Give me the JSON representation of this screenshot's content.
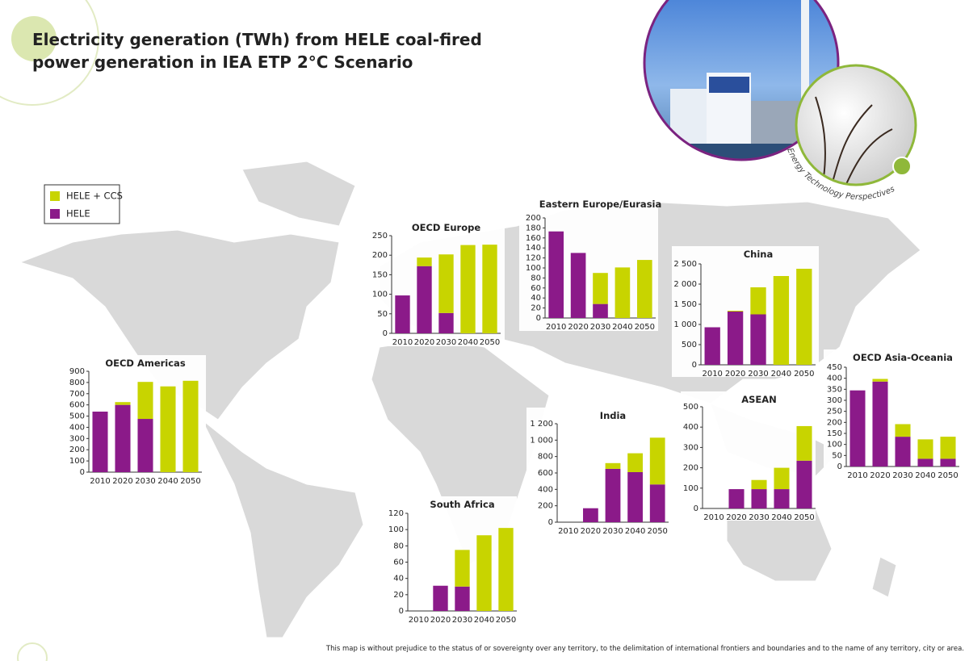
{
  "title": [
    "Electricity generation (TWh) from HELE coal-fired",
    "power generation in IEA ETP 2°C Scenario"
  ],
  "badge": "Energy Technology Perspectives",
  "note": "This map is without prejudice to the status of or sovereignty over any territory, to the delimitation of international frontiers and boundaries and to the name of any territory, city or area.",
  "legend": [
    {
      "name": "HELE",
      "color": "#8b1a89"
    },
    {
      "name": "HELE + CCS",
      "color": "#c8d400"
    }
  ],
  "chart_data": [
    {
      "type": "bar",
      "title": "OECD Europe",
      "categories": [
        "2010",
        "2020",
        "2030",
        "2040",
        "2050"
      ],
      "series": [
        {
          "values": [
            97,
            172,
            52,
            0,
            0
          ]
        },
        {
          "values": [
            0,
            22,
            150,
            226,
            227
          ]
        }
      ],
      "ylim": [
        0,
        250
      ],
      "yticks": [
        0,
        50,
        100,
        150,
        200,
        250
      ]
    },
    {
      "type": "bar",
      "title": "Eastern Europe/Eurasia",
      "categories": [
        "2010",
        "2020",
        "2030",
        "2040",
        "2050"
      ],
      "series": [
        {
          "values": [
            173,
            130,
            28,
            0,
            0
          ]
        },
        {
          "values": [
            0,
            0,
            62,
            101,
            116
          ]
        }
      ],
      "ylim": [
        0,
        200
      ],
      "yticks": [
        0,
        20,
        40,
        60,
        80,
        100,
        120,
        140,
        160,
        180,
        200
      ]
    },
    {
      "type": "bar",
      "title": "China",
      "categories": [
        "2010",
        "2020",
        "2030",
        "2040",
        "2050"
      ],
      "series": [
        {
          "values": [
            930,
            1320,
            1250,
            0,
            0
          ]
        },
        {
          "values": [
            0,
            20,
            670,
            2200,
            2380
          ]
        }
      ],
      "ylim": [
        0,
        2500
      ],
      "yticks": [
        0,
        500,
        {
          "value": 1000,
          "label": "1 000"
        },
        {
          "value": 1500,
          "label": "1 500"
        },
        {
          "value": 2000,
          "label": "2 000"
        },
        {
          "value": 2500,
          "label": "2 500"
        }
      ]
    },
    {
      "type": "bar",
      "title": "OECD Americas",
      "categories": [
        "2010",
        "2020",
        "2030",
        "2040",
        "2050"
      ],
      "series": [
        {
          "values": [
            540,
            600,
            475,
            0,
            0
          ]
        },
        {
          "values": [
            0,
            25,
            330,
            765,
            815
          ]
        }
      ],
      "ylim": [
        0,
        900
      ],
      "yticks": [
        0,
        100,
        200,
        300,
        400,
        500,
        600,
        700,
        800,
        900
      ]
    },
    {
      "type": "bar",
      "title": "India",
      "categories": [
        "2010",
        "2020",
        "2030",
        "2040",
        "2050"
      ],
      "series": [
        {
          "values": [
            0,
            170,
            650,
            610,
            460
          ]
        },
        {
          "values": [
            0,
            0,
            70,
            230,
            570
          ]
        }
      ],
      "ylim": [
        0,
        1200
      ],
      "yticks": [
        0,
        200,
        400,
        600,
        800,
        {
          "value": 1000,
          "label": "1 000"
        },
        {
          "value": 1200,
          "label": "1 200"
        }
      ]
    },
    {
      "type": "bar",
      "title": "ASEAN",
      "categories": [
        "2010",
        "2020",
        "2030",
        "2040",
        "2050"
      ],
      "series": [
        {
          "values": [
            0,
            95,
            95,
            95,
            235
          ]
        },
        {
          "values": [
            0,
            0,
            45,
            105,
            170
          ]
        }
      ],
      "ylim": [
        0,
        500
      ],
      "yticks": [
        0,
        100,
        200,
        300,
        400,
        500
      ]
    },
    {
      "type": "bar",
      "title": "OECD Asia-Oceania",
      "categories": [
        "2010",
        "2020",
        "2030",
        "2040",
        "2050"
      ],
      "series": [
        {
          "values": [
            345,
            385,
            135,
            35,
            35
          ]
        },
        {
          "values": [
            0,
            12,
            57,
            88,
            100
          ]
        }
      ],
      "ylim": [
        0,
        450
      ],
      "yticks": [
        0,
        50,
        100,
        150,
        200,
        250,
        300,
        350,
        400,
        450
      ]
    },
    {
      "type": "bar",
      "title": "South Africa",
      "categories": [
        "2010",
        "2020",
        "2030",
        "2040",
        "2050"
      ],
      "series": [
        {
          "values": [
            0,
            31,
            30,
            0,
            0
          ]
        },
        {
          "values": [
            0,
            0,
            45,
            93,
            102
          ]
        }
      ],
      "ylim": [
        0,
        120
      ],
      "yticks": [
        0,
        20,
        40,
        60,
        80,
        100,
        120
      ]
    }
  ]
}
